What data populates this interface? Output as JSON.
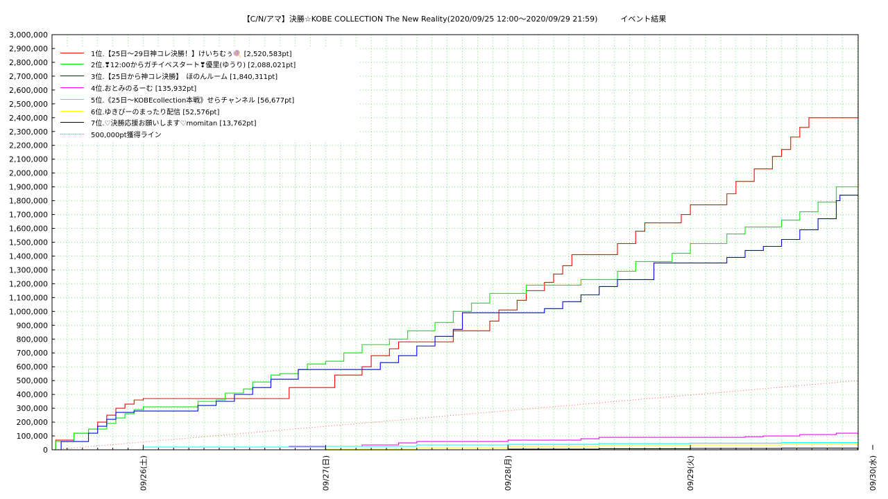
{
  "chart_data": {
    "type": "line",
    "title": "【C/N/アマ】決勝☆KOBE COLLECTION The New Reality(2020/09/25 12:00〜2020/09/29 21:59)　　　イベント結果",
    "xlabel": "",
    "ylabel": "",
    "xlim": [
      0,
      4.42
    ],
    "ylim": [
      0,
      3000000
    ],
    "y_ticks": [
      0,
      100000,
      200000,
      300000,
      400000,
      500000,
      600000,
      700000,
      800000,
      900000,
      1000000,
      1100000,
      1200000,
      1300000,
      1400000,
      1500000,
      1600000,
      1700000,
      1800000,
      1900000,
      2000000,
      2100000,
      2200000,
      2300000,
      2400000,
      2500000,
      2600000,
      2700000,
      2800000,
      2900000,
      3000000
    ],
    "y_tick_labels": [
      "0",
      "100,000",
      "200,000",
      "300,000",
      "400,000",
      "500,000",
      "600,000",
      "700,000",
      "800,000",
      "900,000",
      "1,000,000",
      "1,100,000",
      "1,200,000",
      "1,300,000",
      "1,400,000",
      "1,500,000",
      "1,600,000",
      "1,700,000",
      "1,800,000",
      "1,900,000",
      "2,000,000",
      "2,100,000",
      "2,200,000",
      "2,300,000",
      "2,400,000",
      "2,500,000",
      "2,600,000",
      "2,700,000",
      "2,800,000",
      "2,900,000",
      "3,000,000"
    ],
    "x_ticks": [
      0.5,
      1.5,
      2.5,
      3.5,
      4.5
    ],
    "x_tick_labels": [
      "09/26(土)",
      "09/27(日)",
      "09/28(月)",
      "09/29(火)",
      "09/30(水)"
    ],
    "x_unit_note": "days from 2020/09/25 12:00",
    "grid": true,
    "legend_position": "top-left",
    "series": [
      {
        "name": "1位.【25日〜29日神コレ決勝！】けいちむぅ🍭 [2,520,583pt]",
        "color": "#ff0000",
        "style": "solid",
        "x": [
          0,
          0.02,
          0.1,
          0.12,
          0.2,
          0.25,
          0.3,
          0.35,
          0.4,
          0.45,
          0.5,
          1.25,
          1.3,
          1.5,
          1.55,
          1.7,
          1.75,
          1.85,
          1.9,
          2.2,
          2.25,
          2.4,
          2.45,
          2.55,
          2.6,
          2.7,
          2.75,
          2.8,
          2.85,
          2.9,
          2.95,
          3.0,
          3.05,
          3.1,
          3.15,
          3.2,
          3.25,
          3.45,
          3.5,
          3.7,
          3.75,
          3.8,
          3.85,
          3.9,
          3.95,
          4.0,
          4.05,
          4.1,
          4.15,
          4.42
        ],
        "y": [
          0,
          70000,
          70000,
          120000,
          150000,
          200000,
          250000,
          300000,
          330000,
          360000,
          370000,
          370000,
          450000,
          450000,
          540000,
          600000,
          680000,
          730000,
          780000,
          860000,
          860000,
          930000,
          1010000,
          1080000,
          1150000,
          1210000,
          1270000,
          1330000,
          1410000,
          1410000,
          1410000,
          1410000,
          1410000,
          1490000,
          1490000,
          1580000,
          1640000,
          1700000,
          1770000,
          1850000,
          1940000,
          1940000,
          2030000,
          2030000,
          2120000,
          2170000,
          2260000,
          2330000,
          2400000,
          2520583
        ]
      },
      {
        "name": "2位.❣12:00からガチイベスタート❣優里(ゆうり) [2,088,021pt]",
        "color": "#00ee00",
        "style": "solid",
        "x": [
          0,
          0.02,
          0.12,
          0.2,
          0.3,
          0.35,
          0.4,
          0.45,
          0.5,
          0.75,
          0.8,
          0.9,
          0.95,
          1.05,
          1.1,
          1.2,
          1.25,
          1.35,
          1.4,
          1.5,
          1.6,
          1.7,
          1.8,
          1.85,
          1.95,
          2.0,
          2.1,
          2.2,
          2.3,
          2.4,
          2.5,
          2.6,
          2.7,
          2.8,
          2.9,
          3.0,
          3.1,
          3.2,
          3.3,
          3.4,
          3.5,
          3.6,
          3.7,
          3.8,
          3.9,
          4.0,
          4.1,
          4.2,
          4.3,
          4.42
        ],
        "y": [
          0,
          60000,
          120000,
          150000,
          190000,
          230000,
          260000,
          290000,
          310000,
          310000,
          350000,
          360000,
          410000,
          440000,
          490000,
          540000,
          550000,
          580000,
          620000,
          640000,
          700000,
          760000,
          760000,
          800000,
          860000,
          860000,
          920000,
          1000000,
          1060000,
          1130000,
          1130000,
          1190000,
          1190000,
          1190000,
          1230000,
          1230000,
          1290000,
          1360000,
          1360000,
          1420000,
          1490000,
          1490000,
          1560000,
          1610000,
          1610000,
          1660000,
          1720000,
          1790000,
          1900000,
          2088021
        ]
      },
      {
        "name": "3位.【25日から神コレ決勝】　ほのんルーム [1,840,311pt]",
        "color": "#0000ff",
        "style": "solid",
        "x": [
          0,
          0.05,
          0.1,
          0.2,
          0.25,
          0.3,
          0.35,
          0.4,
          0.45,
          0.5,
          0.7,
          0.8,
          0.9,
          1.0,
          1.1,
          1.2,
          1.3,
          1.35,
          1.5,
          1.6,
          1.7,
          1.8,
          1.9,
          2.0,
          2.1,
          2.2,
          2.25,
          2.3,
          2.4,
          2.5,
          2.6,
          2.7,
          2.8,
          2.9,
          3.0,
          3.1,
          3.2,
          3.3,
          3.4,
          3.5,
          3.6,
          3.7,
          3.8,
          3.9,
          4.0,
          4.1,
          4.2,
          4.3,
          4.32,
          4.42
        ],
        "y": [
          0,
          60000,
          60000,
          120000,
          170000,
          220000,
          270000,
          270000,
          280000,
          280000,
          280000,
          320000,
          350000,
          400000,
          450000,
          510000,
          510000,
          580000,
          580000,
          580000,
          580000,
          630000,
          680000,
          750000,
          820000,
          870000,
          990000,
          990000,
          990000,
          990000,
          990000,
          1020000,
          1070000,
          1120000,
          1180000,
          1230000,
          1230000,
          1350000,
          1350000,
          1350000,
          1350000,
          1390000,
          1440000,
          1470000,
          1520000,
          1590000,
          1670000,
          1800000,
          1840311,
          1840311
        ]
      },
      {
        "name": "4位.おとみのるーむ [135,932pt]",
        "color": "#ff00ff",
        "style": "solid",
        "x": [
          0,
          0.5,
          1.0,
          1.1,
          1.3,
          1.7,
          1.8,
          1.9,
          2.0,
          2.5,
          2.9,
          3.0,
          3.5,
          3.8,
          3.9,
          4.1,
          4.3,
          4.42
        ],
        "y": [
          0,
          20000,
          20000,
          20000,
          25000,
          35000,
          35000,
          50000,
          60000,
          70000,
          80000,
          90000,
          90000,
          95000,
          100000,
          110000,
          120000,
          135932
        ]
      },
      {
        "name": "5位.《25日〜KOBEcollection本戦》せらチャンネル [56,677pt]",
        "color": "#00ffff",
        "style": "solid",
        "x": [
          0,
          0.5,
          1.0,
          1.5,
          2.0,
          2.5,
          3.0,
          3.5,
          4.0,
          4.42
        ],
        "y": [
          0,
          20000,
          20000,
          25000,
          35000,
          40000,
          45000,
          48000,
          52000,
          56677
        ]
      },
      {
        "name": "6位.ゆきぴーのまったり配信 [52,576pt]",
        "color": "#ffff00",
        "style": "solid",
        "x": [
          0,
          0.5,
          1.0,
          1.5,
          2.0,
          2.5,
          3.0,
          3.5,
          4.0,
          4.42
        ],
        "y": [
          0,
          0,
          0,
          5000,
          15000,
          25000,
          30000,
          35000,
          40000,
          52576
        ]
      },
      {
        "name": "7位.♡決勝応援お願いします♡momitan [13,762pt]",
        "color": "#000000",
        "style": "solid",
        "x": [
          0,
          1.0,
          2.0,
          2.5,
          3.0,
          3.5,
          4.0,
          4.42
        ],
        "y": [
          0,
          0,
          0,
          5000,
          8000,
          10000,
          12000,
          13762
        ]
      },
      {
        "name": "500,000pt獲得ライン",
        "color": "#ff6666",
        "style": "dotted",
        "x": [
          0,
          4.42
        ],
        "y": [
          0,
          500000
        ]
      }
    ]
  }
}
